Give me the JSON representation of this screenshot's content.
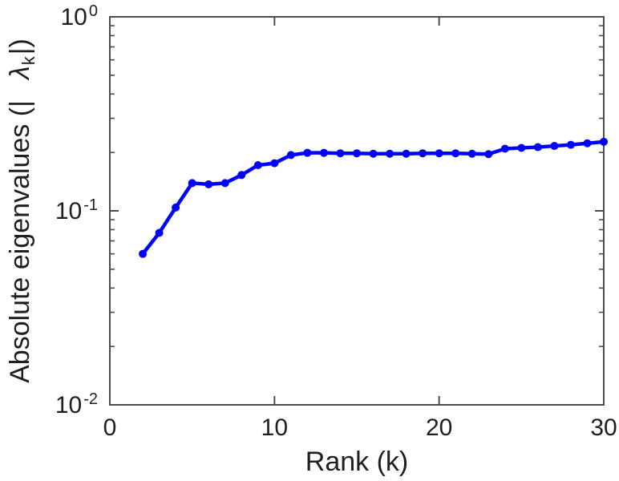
{
  "figure": {
    "background": "#ffffff",
    "axis_color": "#4d4d4d",
    "text_color": "#1f1f1f",
    "xlabel": "Rank (k)",
    "ylabel": {
      "prefix": "Absolute eigenvalues (|",
      "symbol": "λ",
      "subscript": "k",
      "suffix": "|)"
    },
    "x_tick_labels": [
      "0",
      "10",
      "20",
      "30"
    ],
    "y_tick_labels": [
      {
        "base": "10",
        "exp": "0"
      },
      {
        "base": "10",
        "exp": "-1"
      },
      {
        "base": "10",
        "exp": "-2"
      }
    ]
  },
  "chart_data": {
    "type": "line",
    "title": "",
    "xlabel": "Rank (k)",
    "ylabel": "Absolute eigenvalues (|λ_k|)",
    "x": [
      2,
      3,
      4,
      5,
      6,
      7,
      8,
      9,
      10,
      11,
      12,
      13,
      14,
      15,
      16,
      17,
      18,
      19,
      20,
      21,
      22,
      23,
      24,
      25,
      26,
      27,
      28,
      29,
      30
    ],
    "y": [
      0.06,
      0.077,
      0.104,
      0.139,
      0.137,
      0.139,
      0.153,
      0.172,
      0.176,
      0.194,
      0.199,
      0.199,
      0.198,
      0.198,
      0.197,
      0.197,
      0.197,
      0.198,
      0.198,
      0.198,
      0.197,
      0.196,
      0.209,
      0.211,
      0.213,
      0.216,
      0.219,
      0.223,
      0.227
    ],
    "series": [
      {
        "name": "absolute-eigenvalues",
        "color": "#0000ff",
        "marker": "filled-circle",
        "line_width": 4.5,
        "marker_radius": 5
      }
    ],
    "xlim": [
      0,
      30
    ],
    "ylim": [
      0.01,
      1
    ],
    "yscale": "log",
    "xticks": [
      0,
      10,
      20,
      30
    ],
    "yticks": [
      1,
      0.1,
      0.01
    ],
    "y_minor_tick_multipliers": [
      2,
      3,
      4,
      5,
      6,
      7,
      8,
      9
    ],
    "grid": false,
    "legend": null,
    "box": true,
    "tick_direction": "in"
  }
}
